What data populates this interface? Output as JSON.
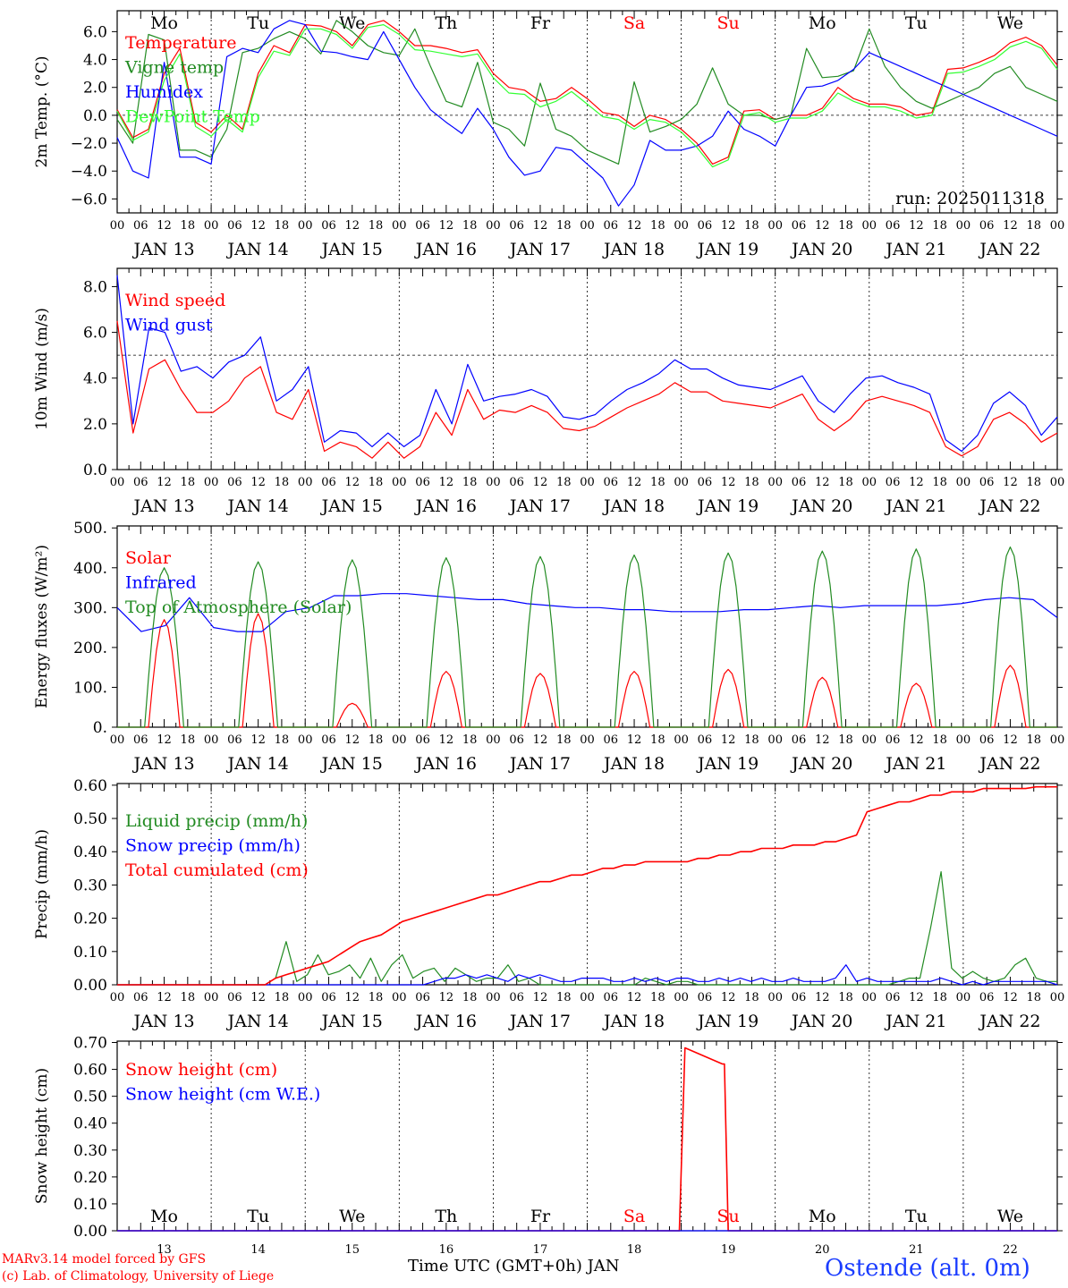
{
  "run_label": "run: 2025011318",
  "footer": {
    "model": "MARv3.14 model forced by GFS",
    "lab": "(c) Lab. of Climatology, University of Liege",
    "xlabel": "Time UTC (GMT+0h) JAN",
    "station": "Ostende (alt. 0m)"
  },
  "colors": {
    "red": "#ff0000",
    "green": "#228b22",
    "blue": "#0000ff",
    "lightgreen": "#33ff33"
  },
  "day_names": [
    "Mo",
    "Tu",
    "We",
    "Th",
    "Fr",
    "Sa",
    "Su",
    "Mo",
    "Tu",
    "We"
  ],
  "weekend_days": [
    5,
    6
  ],
  "date_labels": [
    "JAN 13",
    "JAN 14",
    "JAN 15",
    "JAN 16",
    "JAN 17",
    "JAN 18",
    "JAN 19",
    "JAN 20",
    "JAN 21",
    "JAN 22"
  ],
  "bottom_day_numbers": [
    "13",
    "14",
    "15",
    "16",
    "17",
    "18",
    "19",
    "20",
    "21",
    "22"
  ],
  "hour_ticks": [
    "00",
    "06",
    "12",
    "18"
  ],
  "last_hour_tick": "00",
  "chart_data": [
    {
      "type": "line",
      "ylabel": "2m Temp. (°C)",
      "ylim": [
        -7,
        7.5
      ],
      "yticks": [
        -6.0,
        -4.0,
        -2.0,
        0.0,
        2.0,
        4.0,
        6.0
      ],
      "ytick_labels": [
        "−6.0",
        "−4.0",
        "−2.0",
        "0.0",
        "2.0",
        "4.0",
        "6.0"
      ],
      "reference_line": 0,
      "legend": "top-left",
      "x_hours_step": 6,
      "series": [
        {
          "name": "Temperature",
          "color": "red",
          "values": [
            0.4,
            -1.6,
            -1.0,
            3.0,
            4.8,
            -0.5,
            -1.2,
            0.0,
            -1.0,
            3.0,
            5.0,
            4.5,
            6.5,
            6.4,
            6.0,
            5.0,
            6.5,
            6.8,
            6.0,
            5.0,
            5.0,
            4.8,
            4.5,
            4.7,
            3.0,
            2.0,
            1.8,
            1.0,
            1.2,
            2.0,
            1.2,
            0.2,
            0.0,
            -0.8,
            0.0,
            -0.3,
            -1.0,
            -2.0,
            -3.5,
            -3.0,
            0.3,
            0.4,
            -0.3,
            0.0,
            0.0,
            0.5,
            2.0,
            1.2,
            0.8,
            0.8,
            0.6,
            0.0,
            0.2,
            3.3,
            3.4,
            3.8,
            4.3,
            5.2,
            5.6,
            5.0,
            3.6
          ]
        },
        {
          "name": "Vigne temp",
          "color": "green",
          "values": [
            -0.3,
            -2.0,
            5.8,
            5.4,
            -2.5,
            -2.5,
            -3.0,
            -1.0,
            4.5,
            4.8,
            5.5,
            6.0,
            5.5,
            4.4,
            6.8,
            6.0,
            5.0,
            4.5,
            4.3,
            6.2,
            3.5,
            1.0,
            0.6,
            3.8,
            -0.5,
            -1.0,
            -2.2,
            2.3,
            -1.0,
            -1.5,
            -2.5,
            -3.0,
            -3.5,
            2.4,
            -1.2,
            -0.8,
            -0.3,
            0.8,
            3.4,
            0.8,
            0.0,
            0.0,
            -0.3,
            0.0,
            4.8,
            2.7,
            2.8,
            3.2,
            6.2,
            3.5,
            2.0,
            1.0,
            0.5,
            1.0,
            1.5,
            2.0,
            3.0,
            3.5,
            2.0,
            1.5,
            1.0
          ]
        },
        {
          "name": "Humidex",
          "color": "blue",
          "values": [
            -1.6,
            -4.0,
            -4.5,
            3.8,
            -3.0,
            -3.0,
            -3.5,
            4.2,
            4.8,
            4.5,
            6.2,
            6.8,
            6.5,
            4.6,
            4.5,
            4.2,
            4.0,
            6.0,
            4.0,
            2.0,
            0.4,
            -0.5,
            -1.3,
            0.5,
            -1.0,
            -3.0,
            -4.3,
            -4.0,
            -2.3,
            -2.5,
            -3.5,
            -4.5,
            -6.5,
            -5.0,
            -1.8,
            -2.5,
            -2.5,
            -2.2,
            -1.5,
            0.3,
            -1.0,
            -1.5,
            -2.2,
            0.0,
            2.0,
            2.1,
            2.5,
            3.3,
            4.5,
            4.0,
            3.5,
            3.0,
            2.5,
            2.0,
            1.5,
            1.0,
            0.5,
            0.0,
            -0.5,
            -1.0,
            -1.5
          ]
        },
        {
          "name": "DewPoint Temp",
          "color": "lightgreen",
          "values": [
            0.3,
            -1.8,
            -1.2,
            2.5,
            4.4,
            -0.8,
            -1.5,
            -0.3,
            -1.2,
            2.7,
            4.6,
            4.3,
            6.2,
            6.2,
            5.8,
            4.8,
            6.3,
            6.5,
            5.8,
            4.7,
            4.6,
            4.4,
            4.2,
            4.4,
            2.7,
            1.6,
            1.5,
            0.6,
            1.0,
            1.7,
            0.8,
            -0.1,
            -0.3,
            -1.0,
            -0.3,
            -0.5,
            -1.2,
            -2.3,
            -3.7,
            -3.2,
            0.0,
            0.2,
            -0.5,
            -0.2,
            -0.2,
            0.3,
            1.6,
            1.0,
            0.6,
            0.6,
            0.3,
            -0.2,
            0.0,
            3.0,
            3.1,
            3.5,
            4.0,
            4.9,
            5.3,
            4.8,
            3.3
          ]
        }
      ]
    },
    {
      "type": "line",
      "ylabel": "10m Wind (m/s)",
      "ylim": [
        0,
        8.8
      ],
      "yticks": [
        0.0,
        2.0,
        4.0,
        6.0,
        8.0
      ],
      "ytick_labels": [
        "0.0",
        "2.0",
        "4.0",
        "6.0",
        "8.0"
      ],
      "reference_line": 5,
      "legend": "top-left",
      "x_hours_step": 6,
      "series": [
        {
          "name": "Wind speed",
          "color": "red",
          "values": [
            6.5,
            1.6,
            4.4,
            4.8,
            3.5,
            2.5,
            2.5,
            3.0,
            4.0,
            4.5,
            2.5,
            2.2,
            3.5,
            0.8,
            1.2,
            1.0,
            0.5,
            1.2,
            0.5,
            1.0,
            2.5,
            1.5,
            3.5,
            2.2,
            2.6,
            2.5,
            2.8,
            2.5,
            1.8,
            1.7,
            1.9,
            2.3,
            2.7,
            3.0,
            3.3,
            3.8,
            3.4,
            3.4,
            3.0,
            2.9,
            2.8,
            2.7,
            3.0,
            3.3,
            2.2,
            1.7,
            2.2,
            3.0,
            3.2,
            3.0,
            2.8,
            2.5,
            1.0,
            0.6,
            1.0,
            2.2,
            2.5,
            2.0,
            1.2,
            1.6
          ]
        },
        {
          "name": "Wind gust",
          "color": "blue",
          "values": [
            8.5,
            2.0,
            6.2,
            6.0,
            4.3,
            4.5,
            4.0,
            4.7,
            5.0,
            5.8,
            3.0,
            3.5,
            4.5,
            1.2,
            1.7,
            1.6,
            1.0,
            1.6,
            1.0,
            1.5,
            3.5,
            2.0,
            4.6,
            3.0,
            3.2,
            3.3,
            3.5,
            3.2,
            2.3,
            2.2,
            2.4,
            3.0,
            3.5,
            3.8,
            4.2,
            4.8,
            4.4,
            4.4,
            4.0,
            3.7,
            3.6,
            3.5,
            3.8,
            4.1,
            3.0,
            2.5,
            3.3,
            4.0,
            4.1,
            3.8,
            3.6,
            3.3,
            1.3,
            0.8,
            1.5,
            2.9,
            3.4,
            2.8,
            1.5,
            2.3
          ]
        }
      ]
    },
    {
      "type": "line",
      "ylabel": "Energy fluxes (W/m²)",
      "ylim": [
        0,
        505
      ],
      "yticks": [
        0,
        100,
        200,
        300,
        400,
        500
      ],
      "ytick_labels": [
        "0.",
        "100.",
        "200.",
        "300.",
        "400.",
        "500."
      ],
      "legend": "top-left",
      "x_hours_step": 1,
      "series": [
        {
          "name": "Solar",
          "color": "red",
          "peaks": [
            270,
            285,
            60,
            140,
            135,
            140,
            145,
            125,
            110,
            155
          ]
        },
        {
          "name": "Infrared",
          "color": "blue",
          "values": [
            300,
            240,
            255,
            325,
            250,
            240,
            240,
            290,
            300,
            330,
            330,
            335,
            335,
            330,
            325,
            320,
            320,
            310,
            305,
            300,
            300,
            295,
            295,
            290,
            290,
            290,
            295,
            295,
            300,
            305,
            300,
            305,
            305,
            305,
            305,
            310,
            320,
            325,
            320,
            275
          ]
        },
        {
          "name": "Top of Atmosphere (Solar)",
          "color": "green",
          "peaks": [
            400,
            415,
            420,
            425,
            428,
            432,
            437,
            442,
            447,
            452
          ]
        }
      ]
    },
    {
      "type": "line",
      "ylabel": "Precip (mm/h)",
      "ylim": [
        0,
        0.605
      ],
      "yticks": [
        0.0,
        0.1,
        0.2,
        0.3,
        0.4,
        0.5,
        0.6
      ],
      "ytick_labels": [
        "0.00",
        "0.10",
        "0.20",
        "0.30",
        "0.40",
        "0.50",
        "0.60"
      ],
      "legend": "top-left",
      "x_hours_step": 3,
      "series": [
        {
          "name": "Liquid precip (mm/h)",
          "color": "green",
          "values": [
            0,
            0,
            0,
            0,
            0,
            0,
            0,
            0,
            0,
            0,
            0,
            0,
            0,
            0,
            0,
            0.02,
            0.13,
            0.01,
            0.03,
            0.09,
            0.03,
            0.04,
            0.06,
            0.02,
            0.08,
            0.01,
            0.06,
            0.09,
            0.02,
            0.04,
            0.05,
            0.01,
            0.05,
            0.03,
            0.01,
            0.02,
            0.02,
            0.06,
            0.01,
            0.02,
            0,
            0,
            0,
            0,
            0,
            0,
            0,
            0,
            0,
            0,
            0.02,
            0.01,
            0,
            0.01,
            0.01,
            0,
            0,
            0,
            0,
            0,
            0,
            0,
            0,
            0,
            0,
            0,
            0,
            0,
            0,
            0,
            0,
            0,
            0,
            0,
            0.01,
            0.02,
            0.02,
            0.17,
            0.34,
            0.05,
            0.02,
            0.04,
            0.02,
            0.01,
            0.02,
            0.06,
            0.08,
            0.02,
            0.01,
            0.01
          ]
        },
        {
          "name": "Snow precip (mm/h)",
          "color": "blue",
          "values": [
            0,
            0,
            0,
            0,
            0,
            0,
            0,
            0,
            0,
            0,
            0,
            0,
            0,
            0,
            0,
            0,
            0,
            0,
            0,
            0,
            0,
            0,
            0,
            0,
            0,
            0,
            0,
            0,
            0,
            0,
            0.01,
            0.02,
            0.02,
            0.03,
            0.02,
            0.03,
            0.02,
            0.01,
            0.03,
            0.02,
            0.03,
            0.02,
            0.01,
            0.01,
            0.02,
            0.02,
            0.02,
            0.01,
            0.01,
            0.02,
            0.01,
            0.02,
            0.01,
            0.02,
            0.02,
            0.01,
            0.01,
            0.02,
            0.01,
            0.02,
            0.01,
            0.02,
            0.01,
            0.01,
            0.02,
            0.01,
            0.01,
            0.01,
            0.02,
            0.06,
            0.01,
            0.02,
            0.01,
            0.01,
            0.01,
            0.01,
            0.01,
            0.01,
            0.02,
            0.01,
            0,
            0.01,
            0,
            0.01,
            0.01,
            0.01,
            0.01,
            0.01,
            0.01,
            0
          ]
        },
        {
          "name": "Total cumulated (cm)",
          "color": "red",
          "values": [
            0,
            0,
            0,
            0,
            0,
            0,
            0,
            0,
            0,
            0,
            0,
            0,
            0,
            0,
            0,
            0.02,
            0.03,
            0.04,
            0.05,
            0.06,
            0.07,
            0.09,
            0.11,
            0.13,
            0.14,
            0.15,
            0.17,
            0.19,
            0.2,
            0.21,
            0.22,
            0.23,
            0.24,
            0.25,
            0.26,
            0.27,
            0.27,
            0.28,
            0.29,
            0.3,
            0.31,
            0.31,
            0.32,
            0.33,
            0.33,
            0.34,
            0.35,
            0.35,
            0.36,
            0.36,
            0.37,
            0.37,
            0.37,
            0.37,
            0.37,
            0.38,
            0.38,
            0.39,
            0.39,
            0.4,
            0.4,
            0.41,
            0.41,
            0.41,
            0.42,
            0.42,
            0.42,
            0.43,
            0.43,
            0.44,
            0.45,
            0.52,
            0.53,
            0.54,
            0.55,
            0.55,
            0.56,
            0.57,
            0.57,
            0.58,
            0.58,
            0.58,
            0.59,
            0.59,
            0.59,
            0.59,
            0.59,
            0.595,
            0.595,
            0.595
          ]
        }
      ]
    },
    {
      "type": "line",
      "ylabel": "Snow height (cm)",
      "ylim": [
        0,
        0.705
      ],
      "yticks": [
        0.0,
        0.1,
        0.2,
        0.3,
        0.4,
        0.5,
        0.6,
        0.7
      ],
      "ytick_labels": [
        "0.00",
        "0.10",
        "0.20",
        "0.30",
        "0.40",
        "0.50",
        "0.60",
        "0.70"
      ],
      "legend": "top-left",
      "series": [
        {
          "name": "Snow height (cm)",
          "color": "red",
          "points": [
            [
              0,
              0
            ],
            [
              5.98,
              0
            ],
            [
              6.04,
              0.68
            ],
            [
              6.44,
              0.62
            ],
            [
              6.46,
              0.62
            ],
            [
              6.5,
              0
            ],
            [
              10,
              0
            ]
          ]
        },
        {
          "name": "Snow height (cm W.E.)",
          "color": "blue",
          "points": [
            [
              0,
              0
            ],
            [
              10,
              0
            ]
          ]
        }
      ]
    }
  ]
}
